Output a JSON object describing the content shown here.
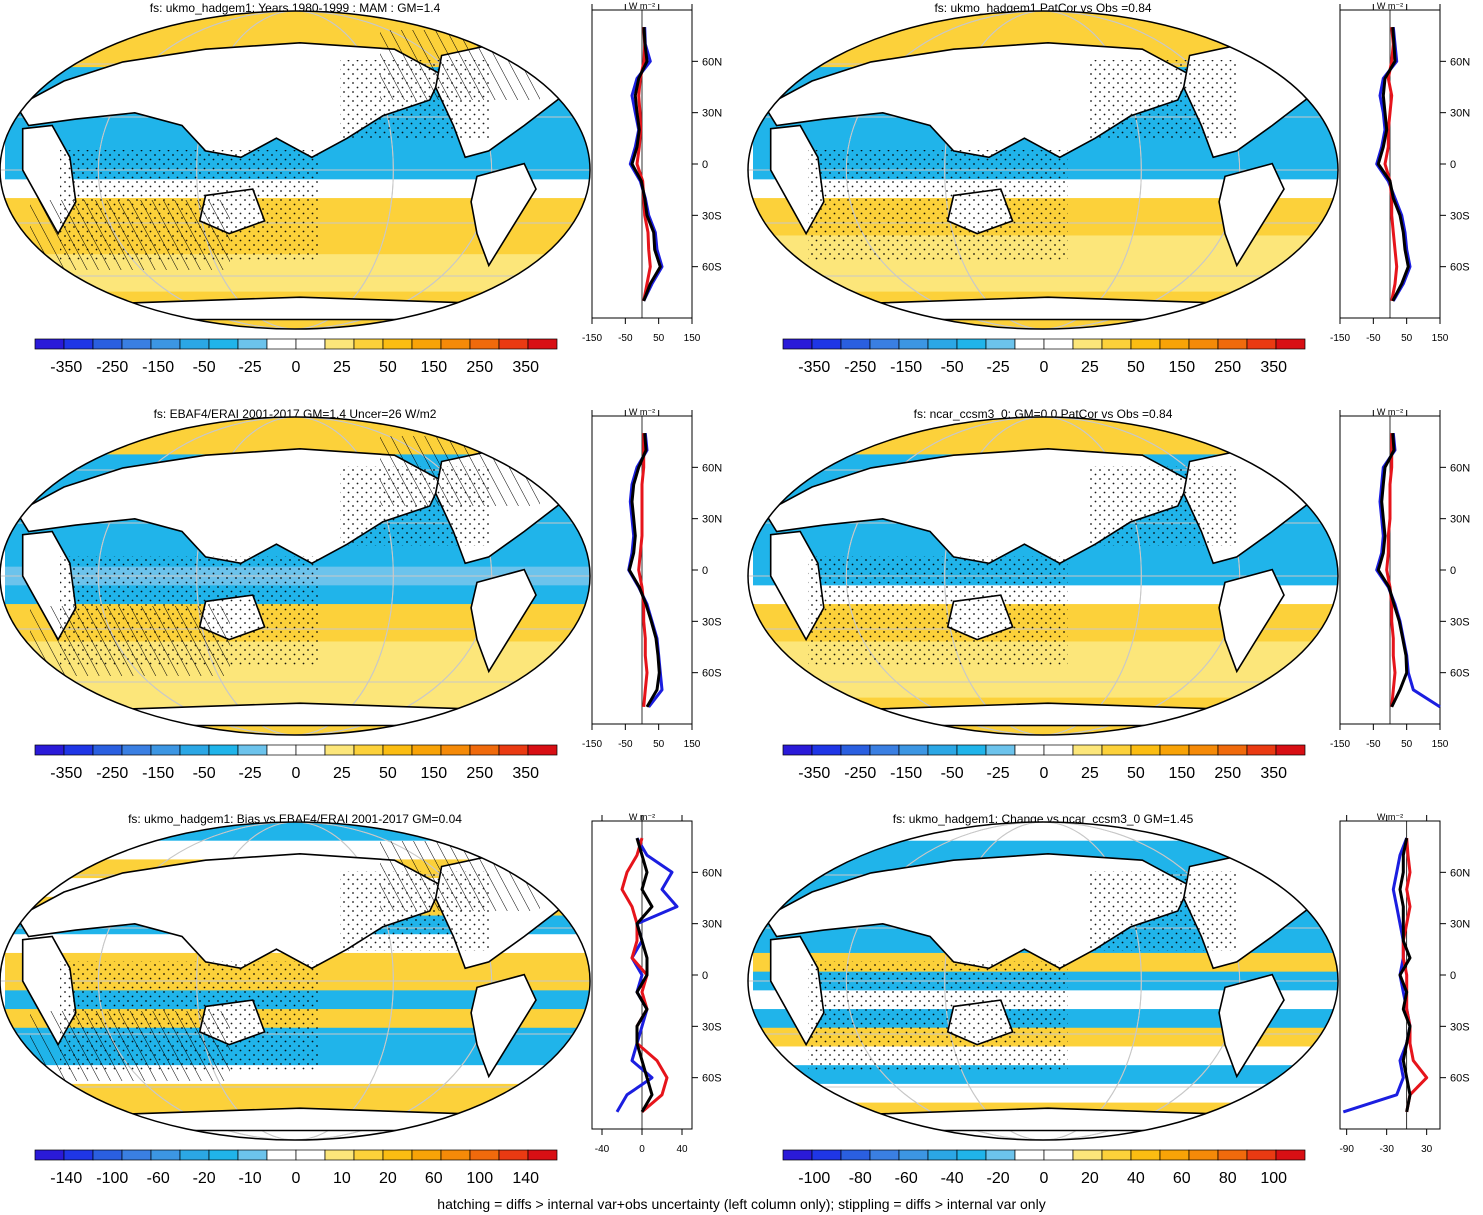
{
  "footer": "hatching = diffs > internal var+obs uncertainty (left column only); stippling = diffs > internal var only",
  "colormap": [
    "#2a1ad8",
    "#1f36e6",
    "#2a5fe0",
    "#3a7fe2",
    "#3c96e3",
    "#2ba7e5",
    "#20b4ea",
    "#6cc3ec",
    "#ffffff",
    "#ffffff",
    "#fce67a",
    "#fcd13a",
    "#fbbd12",
    "#f8a307",
    "#f58a08",
    "#f06a0c",
    "#ea3a12",
    "#d80f14"
  ],
  "land_color": "#ffffff",
  "profile_colors": {
    "model": "#e6141b",
    "obs": "#1b1ee0",
    "total": "#000000"
  },
  "chart_data": [
    {
      "type": "heatmap",
      "title": "fs: ukmo_hadgem1: Years 1980-1999 : MAM : GM=1.4",
      "colorbar_ticks": [
        "-350",
        "-250",
        "-150",
        "-50",
        "-25",
        "0",
        "25",
        "50",
        "150",
        "250",
        "350"
      ],
      "profile_units": "W m⁻²",
      "profile_xticks": [
        "-150",
        "-50",
        "50",
        "150"
      ],
      "profile_xrange": [
        -150,
        150
      ],
      "lat_ticks": [
        "60N",
        "30N",
        "0",
        "30S",
        "60S"
      ],
      "hatch": true,
      "profile": {
        "lat": [
          80,
          70,
          60,
          50,
          40,
          30,
          20,
          10,
          0,
          -10,
          -20,
          -30,
          -40,
          -50,
          -60,
          -70,
          -80
        ],
        "model": [
          5,
          8,
          6,
          -5,
          -10,
          -6,
          -4,
          -8,
          -15,
          2,
          5,
          8,
          18,
          20,
          25,
          15,
          5
        ],
        "obs": [
          8,
          10,
          25,
          -15,
          -30,
          -20,
          -10,
          -20,
          -35,
          -5,
          10,
          20,
          40,
          45,
          60,
          30,
          5
        ],
        "total": [
          6,
          9,
          15,
          -10,
          -20,
          -15,
          -8,
          -15,
          -30,
          -2,
          8,
          15,
          35,
          38,
          55,
          25,
          5
        ]
      }
    },
    {
      "type": "heatmap",
      "title": "fs: ukmo_hadgem1 PatCor vs Obs =0.84",
      "colorbar_ticks": [
        "-350",
        "-250",
        "-150",
        "-50",
        "-25",
        "0",
        "25",
        "50",
        "150",
        "250",
        "350"
      ],
      "profile_units": "W m⁻²",
      "profile_xticks": [
        "-150",
        "-50",
        "50",
        "150"
      ],
      "profile_xrange": [
        -150,
        150
      ],
      "lat_ticks": [
        "60N",
        "30N",
        "0",
        "30S",
        "60S"
      ],
      "hatch": false,
      "profile": {
        "lat": [
          80,
          70,
          60,
          50,
          40,
          30,
          20,
          10,
          0,
          -10,
          -20,
          -30,
          -40,
          -50,
          -60,
          -70,
          -80
        ],
        "model": [
          5,
          10,
          5,
          -5,
          5,
          0,
          -5,
          -5,
          -15,
          0,
          5,
          5,
          10,
          15,
          20,
          15,
          5
        ],
        "obs": [
          10,
          15,
          20,
          -20,
          -30,
          -20,
          -15,
          -25,
          -40,
          -5,
          15,
          35,
          45,
          50,
          60,
          40,
          10
        ],
        "total": [
          8,
          12,
          15,
          -15,
          -20,
          -15,
          -10,
          -20,
          -35,
          0,
          10,
          30,
          40,
          45,
          55,
          35,
          8
        ]
      }
    },
    {
      "type": "heatmap",
      "title": "fs: EBAF4/ERAI 2001-2017 GM=1.4 Uncer=26 W/m2",
      "colorbar_ticks": [
        "-350",
        "-250",
        "-150",
        "-50",
        "-25",
        "0",
        "25",
        "50",
        "150",
        "250",
        "350"
      ],
      "profile_units": "W m⁻²",
      "profile_xticks": [
        "-150",
        "-50",
        "50",
        "150"
      ],
      "profile_xrange": [
        -150,
        150
      ],
      "lat_ticks": [
        "60N",
        "30N",
        "0",
        "30S",
        "60S"
      ],
      "hatch": true,
      "profile": {
        "lat": [
          80,
          70,
          60,
          50,
          40,
          30,
          20,
          10,
          0,
          -10,
          -20,
          -30,
          -40,
          -50,
          -60,
          -70,
          -80
        ],
        "model": [
          5,
          5,
          5,
          0,
          0,
          0,
          0,
          -5,
          -10,
          0,
          5,
          5,
          10,
          10,
          15,
          10,
          5
        ],
        "obs": [
          10,
          15,
          -15,
          -30,
          -35,
          -30,
          -25,
          -30,
          -40,
          -10,
          15,
          30,
          45,
          50,
          55,
          60,
          20
        ],
        "total": [
          8,
          12,
          -10,
          -25,
          -30,
          -25,
          -20,
          -25,
          -38,
          -8,
          12,
          28,
          42,
          48,
          52,
          45,
          15
        ]
      }
    },
    {
      "type": "heatmap",
      "title": "fs: ncar_ccsm3_0: GM=0.0 PatCor vs Obs =0.84",
      "colorbar_ticks": [
        "-350",
        "-250",
        "-150",
        "-50",
        "-25",
        "0",
        "25",
        "50",
        "150",
        "250",
        "350"
      ],
      "profile_units": "W m⁻²",
      "profile_xticks": [
        "-150",
        "-50",
        "50",
        "150"
      ],
      "profile_xrange": [
        -150,
        150
      ],
      "lat_ticks": [
        "60N",
        "30N",
        "0",
        "30S",
        "60S"
      ],
      "hatch": false,
      "profile": {
        "lat": [
          80,
          70,
          60,
          50,
          40,
          30,
          20,
          10,
          0,
          -10,
          -20,
          -30,
          -40,
          -50,
          -60,
          -70,
          -80
        ],
        "model": [
          5,
          5,
          5,
          0,
          0,
          0,
          -5,
          -5,
          -10,
          0,
          5,
          5,
          10,
          10,
          15,
          10,
          5
        ],
        "obs": [
          10,
          15,
          -20,
          -25,
          -30,
          -25,
          -20,
          -25,
          -40,
          -5,
          15,
          30,
          40,
          50,
          55,
          70,
          150
        ],
        "total": [
          8,
          12,
          -15,
          -20,
          -25,
          -20,
          -15,
          -20,
          -35,
          -3,
          12,
          28,
          38,
          48,
          50,
          30,
          5
        ]
      }
    },
    {
      "type": "heatmap",
      "title": "fs: ukmo_hadgem1: Bias vs EBAF4/ERAI 2001-2017 GM=0.04",
      "colorbar_ticks": [
        "-140",
        "-100",
        "-60",
        "-20",
        "-10",
        "0",
        "10",
        "20",
        "60",
        "100",
        "140"
      ],
      "profile_units": "W m⁻²",
      "profile_xticks": [
        "-40",
        "0",
        "40"
      ],
      "profile_xrange": [
        -50,
        50
      ],
      "lat_ticks": [
        "60N",
        "30N",
        "0",
        "30S",
        "60S"
      ],
      "hatch": true,
      "profile": {
        "lat": [
          80,
          70,
          60,
          50,
          40,
          30,
          20,
          10,
          0,
          -10,
          -20,
          -30,
          -40,
          -50,
          -60,
          -70,
          -80
        ],
        "model": [
          0,
          -5,
          -15,
          -20,
          -10,
          -5,
          -5,
          -10,
          5,
          0,
          5,
          -5,
          -5,
          15,
          25,
          20,
          0
        ],
        "obs": [
          -5,
          5,
          30,
          20,
          35,
          -5,
          0,
          -10,
          0,
          -5,
          5,
          0,
          -5,
          -10,
          10,
          -15,
          -25
        ],
        "total": [
          -5,
          0,
          5,
          0,
          10,
          -5,
          0,
          5,
          5,
          -5,
          5,
          -5,
          -5,
          0,
          5,
          10,
          0
        ]
      }
    },
    {
      "type": "heatmap",
      "title": "fs: ukmo_hadgem1: Change vs ncar_ccsm3_0 GM=1.45",
      "colorbar_ticks": [
        "-100",
        "-80",
        "-60",
        "-40",
        "-20",
        "0",
        "20",
        "40",
        "60",
        "80",
        "100"
      ],
      "profile_units": "W m⁻²",
      "profile_xticks": [
        "-90",
        "-30",
        "30"
      ],
      "profile_xrange": [
        -100,
        50
      ],
      "lat_ticks": [
        "60N",
        "30N",
        "0",
        "30S",
        "60S"
      ],
      "hatch": false,
      "profile": {
        "lat": [
          80,
          70,
          60,
          50,
          40,
          30,
          20,
          10,
          0,
          -10,
          -20,
          -30,
          -40,
          -50,
          -60,
          -70,
          -80
        ],
        "model": [
          0,
          2,
          5,
          0,
          5,
          0,
          -5,
          -5,
          0,
          0,
          0,
          5,
          5,
          10,
          30,
          5,
          0
        ],
        "obs": [
          0,
          -10,
          -15,
          -20,
          -15,
          -10,
          -5,
          -5,
          -10,
          -5,
          0,
          5,
          0,
          -10,
          -5,
          -15,
          -95
        ],
        "total": [
          0,
          -5,
          -5,
          -10,
          -5,
          -5,
          -5,
          5,
          -10,
          0,
          -5,
          5,
          0,
          -5,
          0,
          5,
          0
        ]
      }
    }
  ]
}
